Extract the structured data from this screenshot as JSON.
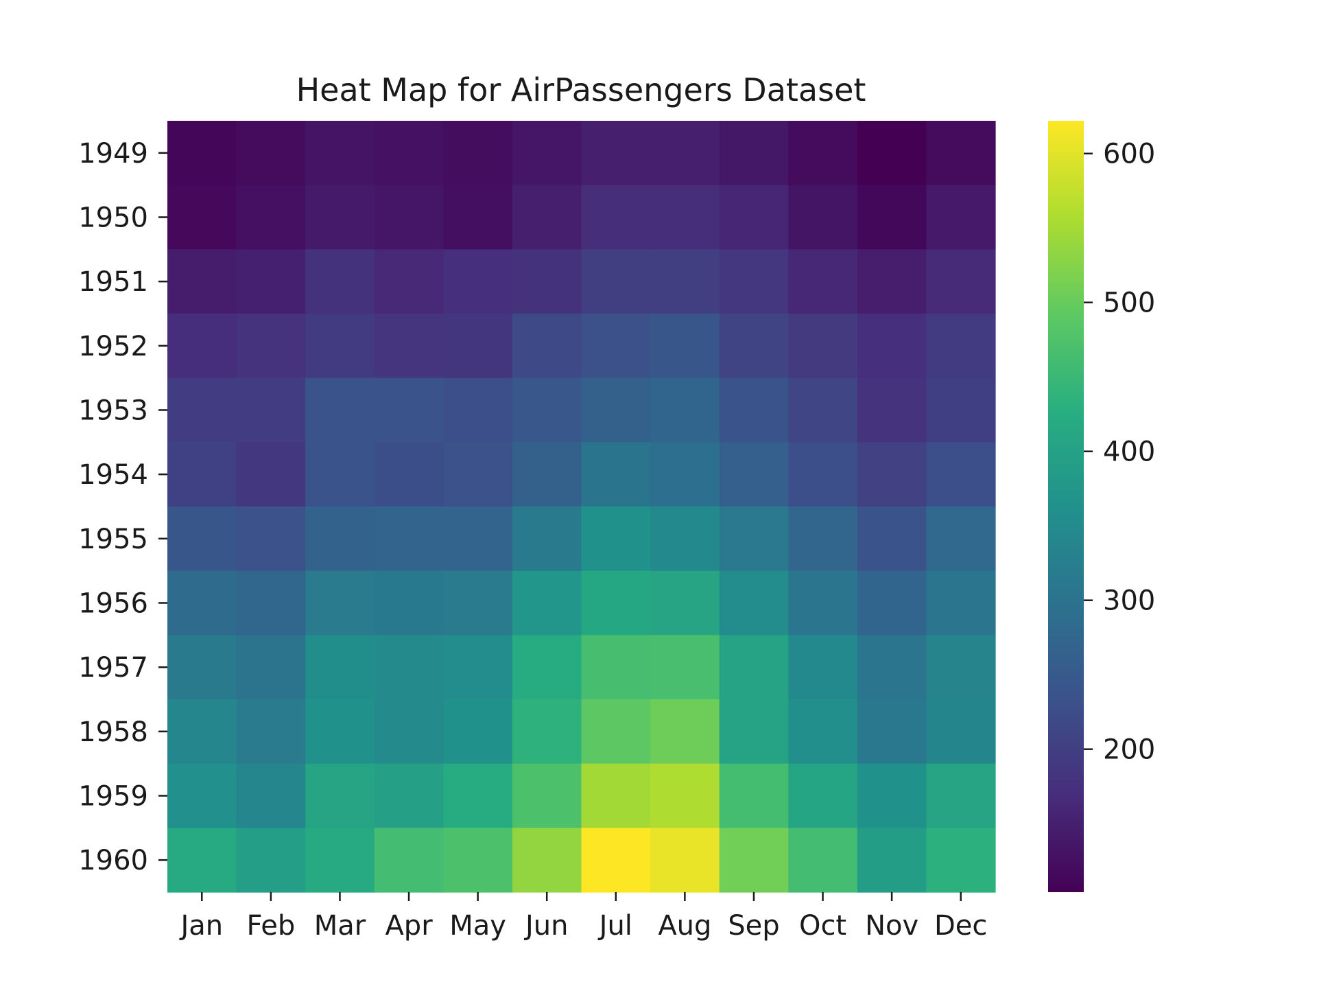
{
  "chart_data": {
    "type": "heatmap",
    "title": "Heat Map for AirPassengers Dataset",
    "xlabel": "",
    "ylabel": "",
    "rows": [
      "1949",
      "1950",
      "1951",
      "1952",
      "1953",
      "1954",
      "1955",
      "1956",
      "1957",
      "1958",
      "1959",
      "1960"
    ],
    "columns": [
      "Jan",
      "Feb",
      "Mar",
      "Apr",
      "May",
      "Jun",
      "Jul",
      "Aug",
      "Sep",
      "Oct",
      "Nov",
      "Dec"
    ],
    "values": [
      [
        112,
        118,
        132,
        129,
        121,
        135,
        148,
        148,
        136,
        119,
        104,
        118
      ],
      [
        115,
        126,
        141,
        135,
        125,
        149,
        170,
        170,
        158,
        133,
        114,
        140
      ],
      [
        145,
        150,
        178,
        163,
        172,
        178,
        199,
        199,
        184,
        162,
        146,
        166
      ],
      [
        171,
        180,
        193,
        181,
        183,
        218,
        230,
        242,
        209,
        191,
        172,
        194
      ],
      [
        196,
        196,
        236,
        235,
        229,
        243,
        264,
        272,
        237,
        211,
        180,
        201
      ],
      [
        204,
        188,
        235,
        227,
        234,
        264,
        302,
        293,
        259,
        229,
        203,
        229
      ],
      [
        242,
        233,
        267,
        269,
        270,
        315,
        364,
        347,
        312,
        274,
        237,
        278
      ],
      [
        284,
        277,
        317,
        313,
        318,
        374,
        413,
        405,
        355,
        306,
        271,
        306
      ],
      [
        315,
        301,
        356,
        348,
        355,
        422,
        465,
        467,
        404,
        347,
        305,
        336
      ],
      [
        340,
        318,
        362,
        348,
        363,
        435,
        491,
        505,
        404,
        359,
        310,
        337
      ],
      [
        360,
        342,
        406,
        396,
        420,
        472,
        548,
        559,
        463,
        407,
        362,
        405
      ],
      [
        417,
        391,
        419,
        461,
        472,
        535,
        622,
        606,
        508,
        461,
        390,
        432
      ]
    ],
    "colorbar": {
      "colormap": "viridis",
      "vmin": 104,
      "vmax": 622,
      "ticks": [
        "200",
        "300",
        "400",
        "500",
        "600"
      ]
    }
  }
}
